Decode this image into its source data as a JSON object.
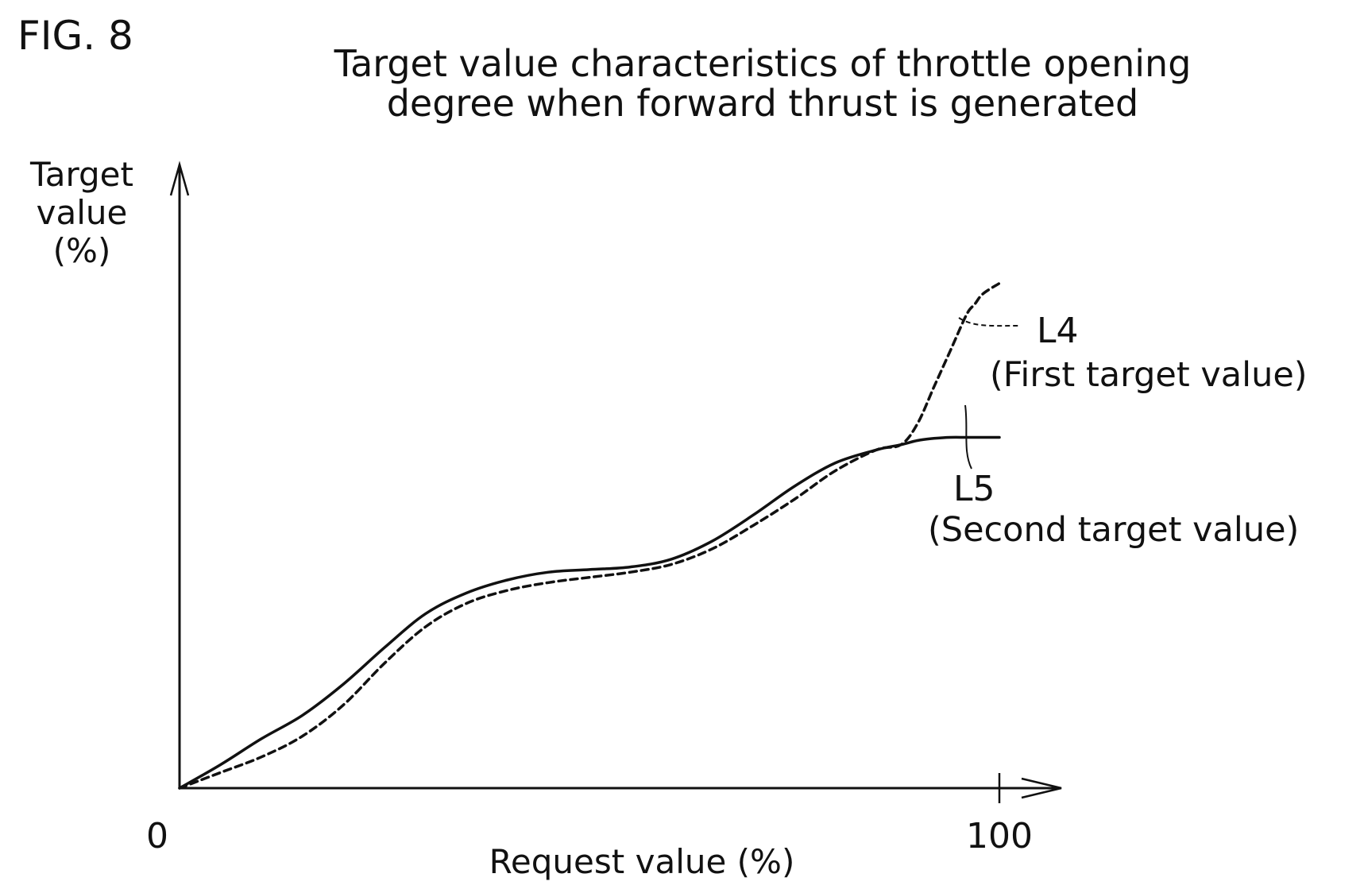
{
  "figure_label": "FIG. 8",
  "chart_data": {
    "type": "line",
    "title_lines": [
      "Target value characteristics of throttle opening",
      "degree when forward thrust is generated"
    ],
    "ylabel_lines": [
      "Target",
      "value",
      "(%)"
    ],
    "xlabel": "Request value (%)",
    "xlim": [
      0,
      100
    ],
    "x_ticks": [
      {
        "value": 0,
        "label": "0"
      },
      {
        "value": 100,
        "label": "100"
      }
    ],
    "grid": false,
    "series": [
      {
        "name": "L4",
        "description": "(First target value)",
        "style": "dashed",
        "color": "#111111",
        "points": [
          [
            0,
            0
          ],
          [
            5,
            3
          ],
          [
            10,
            6
          ],
          [
            15,
            10
          ],
          [
            20,
            16
          ],
          [
            25,
            24
          ],
          [
            30,
            31
          ],
          [
            35,
            35.5
          ],
          [
            40,
            38
          ],
          [
            45,
            39.5
          ],
          [
            50,
            40.5
          ],
          [
            55,
            41.5
          ],
          [
            60,
            43
          ],
          [
            65,
            46
          ],
          [
            70,
            50.5
          ],
          [
            75,
            55.5
          ],
          [
            80,
            61
          ],
          [
            85,
            65
          ],
          [
            88,
            66
          ],
          [
            90,
            70
          ],
          [
            92,
            77
          ],
          [
            94,
            84
          ],
          [
            96,
            91
          ],
          [
            97,
            93
          ],
          [
            98,
            95
          ],
          [
            100,
            97
          ]
        ]
      },
      {
        "name": "L5",
        "description": "(Second target value)",
        "style": "solid",
        "color": "#111111",
        "points": [
          [
            0,
            0
          ],
          [
            5,
            4.5
          ],
          [
            10,
            9.5
          ],
          [
            15,
            14
          ],
          [
            20,
            20
          ],
          [
            25,
            27
          ],
          [
            30,
            33.5
          ],
          [
            35,
            37.5
          ],
          [
            40,
            40
          ],
          [
            45,
            41.5
          ],
          [
            50,
            42
          ],
          [
            55,
            42.5
          ],
          [
            60,
            44
          ],
          [
            65,
            47.5
          ],
          [
            70,
            52.5
          ],
          [
            75,
            58
          ],
          [
            80,
            62.5
          ],
          [
            85,
            65
          ],
          [
            88,
            66
          ],
          [
            90,
            66.8
          ],
          [
            92,
            67.2
          ],
          [
            94,
            67.4
          ],
          [
            96,
            67.4
          ],
          [
            98,
            67.4
          ],
          [
            100,
            67.4
          ]
        ]
      }
    ]
  }
}
